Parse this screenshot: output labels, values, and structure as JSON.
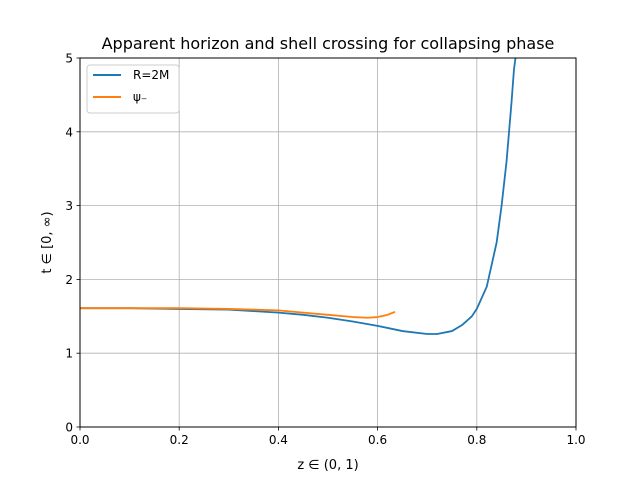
{
  "chart_data": {
    "type": "line",
    "title": "Apparent horizon and shell crossing for collapsing phase",
    "xlabel": "z ∈ (0, 1)",
    "ylabel": "t ∈ [0, ∞)",
    "xlim": [
      0.0,
      1.0
    ],
    "ylim": [
      0,
      5
    ],
    "xticks": [
      "0.0",
      "0.2",
      "0.4",
      "0.6",
      "0.8",
      "1.0"
    ],
    "yticks": [
      "0",
      "1",
      "2",
      "3",
      "4",
      "5"
    ],
    "grid": true,
    "legend_position": "top-left",
    "series": [
      {
        "name": "R=2M",
        "color": "#1f77b4",
        "x": [
          0.0,
          0.1,
          0.2,
          0.3,
          0.4,
          0.45,
          0.5,
          0.55,
          0.6,
          0.65,
          0.7,
          0.72,
          0.75,
          0.77,
          0.79,
          0.8,
          0.82,
          0.84,
          0.85,
          0.86,
          0.87,
          0.875,
          0.878
        ],
        "y": [
          1.61,
          1.61,
          1.6,
          1.59,
          1.55,
          1.52,
          1.48,
          1.43,
          1.37,
          1.3,
          1.26,
          1.26,
          1.3,
          1.38,
          1.5,
          1.6,
          1.9,
          2.5,
          3.0,
          3.6,
          4.4,
          4.85,
          5.0
        ]
      },
      {
        "name": "ψ₋",
        "color": "#ff7f0e",
        "x": [
          0.0,
          0.1,
          0.2,
          0.3,
          0.4,
          0.45,
          0.5,
          0.55,
          0.58,
          0.6,
          0.62,
          0.635
        ],
        "y": [
          1.61,
          1.61,
          1.61,
          1.6,
          1.58,
          1.55,
          1.52,
          1.49,
          1.48,
          1.49,
          1.52,
          1.56
        ]
      }
    ]
  }
}
